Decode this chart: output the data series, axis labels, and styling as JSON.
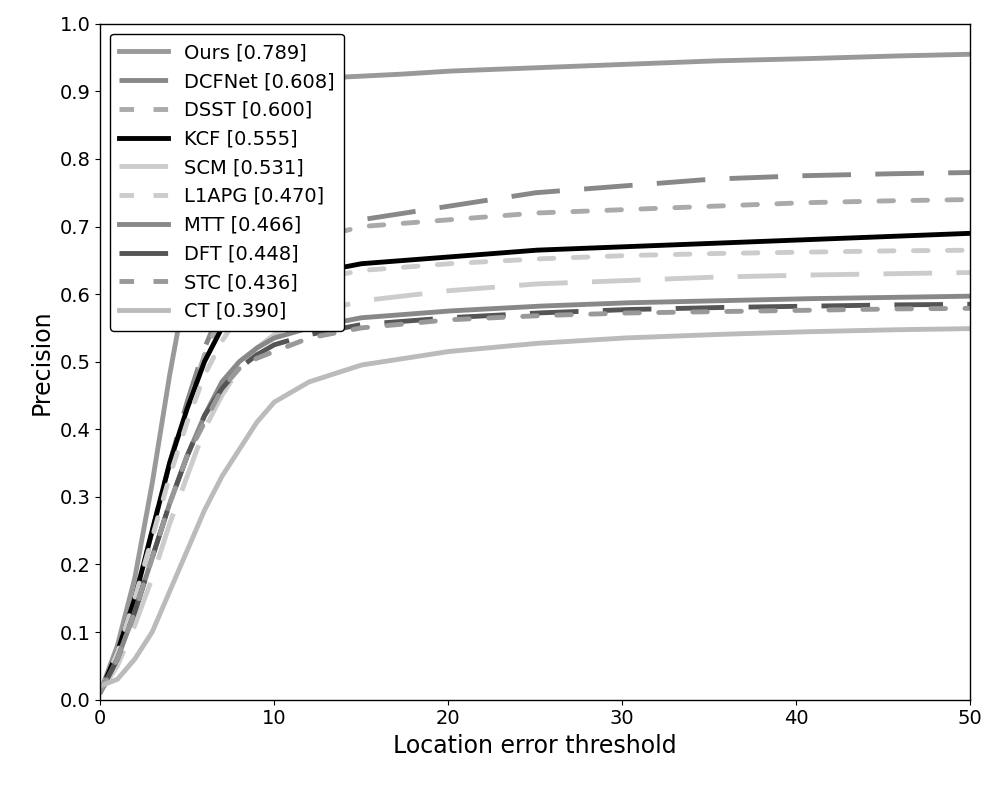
{
  "title": "",
  "xlabel": "Location error threshold",
  "ylabel": "Precision",
  "xlim": [
    0,
    50
  ],
  "ylim": [
    0,
    1
  ],
  "xticks": [
    0,
    10,
    20,
    30,
    40,
    50
  ],
  "yticks": [
    0,
    0.1,
    0.2,
    0.3,
    0.4,
    0.5,
    0.6,
    0.7,
    0.8,
    0.9,
    1
  ],
  "background_color": "#ffffff",
  "series": [
    {
      "name": "Ours [0.789]",
      "color": "#999999",
      "linestyle": "solid",
      "linewidth": 3.5,
      "points": [
        [
          0,
          0.01
        ],
        [
          1,
          0.08
        ],
        [
          2,
          0.18
        ],
        [
          3,
          0.32
        ],
        [
          4,
          0.48
        ],
        [
          5,
          0.62
        ],
        [
          6,
          0.72
        ],
        [
          7,
          0.79
        ],
        [
          8,
          0.84
        ],
        [
          9,
          0.87
        ],
        [
          10,
          0.9
        ],
        [
          13,
          0.92
        ],
        [
          17,
          0.925
        ],
        [
          20,
          0.93
        ],
        [
          25,
          0.935
        ],
        [
          30,
          0.94
        ],
        [
          35,
          0.945
        ],
        [
          40,
          0.948
        ],
        [
          45,
          0.952
        ],
        [
          50,
          0.955
        ]
      ]
    },
    {
      "name": "DCFNet [0.608]",
      "color": "#888888",
      "linestyle": "dashed",
      "linewidth": 3.5,
      "points": [
        [
          0,
          0.01
        ],
        [
          1,
          0.07
        ],
        [
          2,
          0.15
        ],
        [
          3,
          0.25
        ],
        [
          4,
          0.35
        ],
        [
          5,
          0.44
        ],
        [
          6,
          0.52
        ],
        [
          7,
          0.58
        ],
        [
          8,
          0.62
        ],
        [
          9,
          0.65
        ],
        [
          10,
          0.67
        ],
        [
          12,
          0.69
        ],
        [
          15,
          0.71
        ],
        [
          20,
          0.73
        ],
        [
          25,
          0.75
        ],
        [
          30,
          0.76
        ],
        [
          35,
          0.77
        ],
        [
          40,
          0.775
        ],
        [
          45,
          0.778
        ],
        [
          50,
          0.78
        ]
      ]
    },
    {
      "name": "DSST [0.600]",
      "color": "#aaaaaa",
      "linestyle": "dotted",
      "linewidth": 3.5,
      "points": [
        [
          0,
          0.01
        ],
        [
          1,
          0.07
        ],
        [
          2,
          0.15
        ],
        [
          3,
          0.24
        ],
        [
          4,
          0.34
        ],
        [
          5,
          0.43
        ],
        [
          6,
          0.51
        ],
        [
          7,
          0.57
        ],
        [
          8,
          0.61
        ],
        [
          9,
          0.64
        ],
        [
          10,
          0.66
        ],
        [
          12,
          0.68
        ],
        [
          15,
          0.7
        ],
        [
          20,
          0.71
        ],
        [
          25,
          0.72
        ],
        [
          30,
          0.725
        ],
        [
          35,
          0.73
        ],
        [
          40,
          0.735
        ],
        [
          45,
          0.738
        ],
        [
          50,
          0.74
        ]
      ]
    },
    {
      "name": "KCF [0.555]",
      "color": "#000000",
      "linestyle": "solid",
      "linewidth": 3.5,
      "points": [
        [
          0,
          0.01
        ],
        [
          1,
          0.07
        ],
        [
          2,
          0.15
        ],
        [
          3,
          0.25
        ],
        [
          4,
          0.35
        ],
        [
          5,
          0.43
        ],
        [
          6,
          0.5
        ],
        [
          7,
          0.55
        ],
        [
          8,
          0.58
        ],
        [
          9,
          0.6
        ],
        [
          10,
          0.61
        ],
        [
          12,
          0.63
        ],
        [
          15,
          0.645
        ],
        [
          20,
          0.655
        ],
        [
          25,
          0.665
        ],
        [
          30,
          0.67
        ],
        [
          35,
          0.675
        ],
        [
          40,
          0.68
        ],
        [
          45,
          0.685
        ],
        [
          50,
          0.69
        ]
      ]
    },
    {
      "name": "SCM [0.531]",
      "color": "#cccccc",
      "linestyle": "dashed",
      "linewidth": 3.5,
      "points": [
        [
          0,
          0.01
        ],
        [
          1,
          0.05
        ],
        [
          2,
          0.11
        ],
        [
          3,
          0.18
        ],
        [
          4,
          0.26
        ],
        [
          5,
          0.33
        ],
        [
          6,
          0.4
        ],
        [
          7,
          0.45
        ],
        [
          8,
          0.49
        ],
        [
          9,
          0.52
        ],
        [
          10,
          0.54
        ],
        [
          12,
          0.57
        ],
        [
          15,
          0.59
        ],
        [
          20,
          0.605
        ],
        [
          25,
          0.615
        ],
        [
          30,
          0.62
        ],
        [
          35,
          0.625
        ],
        [
          40,
          0.628
        ],
        [
          45,
          0.63
        ],
        [
          50,
          0.632
        ]
      ]
    },
    {
      "name": "L1APG [0.470]",
      "color": "#cccccc",
      "linestyle": "dotted",
      "linewidth": 3.5,
      "points": [
        [
          0,
          0.01
        ],
        [
          1,
          0.07
        ],
        [
          2,
          0.15
        ],
        [
          3,
          0.24
        ],
        [
          4,
          0.33
        ],
        [
          5,
          0.41
        ],
        [
          6,
          0.48
        ],
        [
          7,
          0.53
        ],
        [
          8,
          0.57
        ],
        [
          9,
          0.59
        ],
        [
          10,
          0.6
        ],
        [
          12,
          0.62
        ],
        [
          15,
          0.635
        ],
        [
          20,
          0.645
        ],
        [
          25,
          0.652
        ],
        [
          30,
          0.657
        ],
        [
          35,
          0.66
        ],
        [
          40,
          0.662
        ],
        [
          45,
          0.664
        ],
        [
          50,
          0.665
        ]
      ]
    },
    {
      "name": "MTT [0.466]",
      "color": "#888888",
      "linestyle": "solid",
      "linewidth": 3.5,
      "points": [
        [
          0,
          0.01
        ],
        [
          1,
          0.06
        ],
        [
          2,
          0.13
        ],
        [
          3,
          0.21
        ],
        [
          4,
          0.29
        ],
        [
          5,
          0.36
        ],
        [
          6,
          0.42
        ],
        [
          7,
          0.47
        ],
        [
          8,
          0.5
        ],
        [
          9,
          0.52
        ],
        [
          10,
          0.535
        ],
        [
          12,
          0.55
        ],
        [
          15,
          0.565
        ],
        [
          20,
          0.575
        ],
        [
          25,
          0.582
        ],
        [
          30,
          0.587
        ],
        [
          35,
          0.59
        ],
        [
          40,
          0.593
        ],
        [
          45,
          0.595
        ],
        [
          50,
          0.597
        ]
      ]
    },
    {
      "name": "DFT [0.448]",
      "color": "#555555",
      "linestyle": "dashed",
      "linewidth": 3.5,
      "points": [
        [
          0,
          0.01
        ],
        [
          1,
          0.06
        ],
        [
          2,
          0.13
        ],
        [
          3,
          0.21
        ],
        [
          4,
          0.29
        ],
        [
          5,
          0.36
        ],
        [
          6,
          0.42
        ],
        [
          7,
          0.46
        ],
        [
          8,
          0.49
        ],
        [
          9,
          0.51
        ],
        [
          10,
          0.525
        ],
        [
          12,
          0.54
        ],
        [
          15,
          0.555
        ],
        [
          20,
          0.565
        ],
        [
          25,
          0.572
        ],
        [
          30,
          0.577
        ],
        [
          35,
          0.58
        ],
        [
          40,
          0.582
        ],
        [
          45,
          0.584
        ],
        [
          50,
          0.585
        ]
      ]
    },
    {
      "name": "STC [0.436]",
      "color": "#999999",
      "linestyle": "dotted",
      "linewidth": 3.5,
      "points": [
        [
          0,
          0.01
        ],
        [
          1,
          0.06
        ],
        [
          2,
          0.13
        ],
        [
          3,
          0.21
        ],
        [
          4,
          0.29
        ],
        [
          5,
          0.36
        ],
        [
          6,
          0.41
        ],
        [
          7,
          0.46
        ],
        [
          8,
          0.49
        ],
        [
          9,
          0.505
        ],
        [
          10,
          0.515
        ],
        [
          12,
          0.535
        ],
        [
          15,
          0.55
        ],
        [
          20,
          0.562
        ],
        [
          25,
          0.568
        ],
        [
          30,
          0.572
        ],
        [
          35,
          0.574
        ],
        [
          40,
          0.576
        ],
        [
          45,
          0.578
        ],
        [
          50,
          0.579
        ]
      ]
    },
    {
      "name": "CT [0.390]",
      "color": "#bbbbbb",
      "linestyle": "solid",
      "linewidth": 3.5,
      "points": [
        [
          0,
          0.02
        ],
        [
          1,
          0.03
        ],
        [
          2,
          0.06
        ],
        [
          3,
          0.1
        ],
        [
          4,
          0.16
        ],
        [
          5,
          0.22
        ],
        [
          6,
          0.28
        ],
        [
          7,
          0.33
        ],
        [
          8,
          0.37
        ],
        [
          9,
          0.41
        ],
        [
          10,
          0.44
        ],
        [
          12,
          0.47
        ],
        [
          15,
          0.495
        ],
        [
          20,
          0.515
        ],
        [
          25,
          0.527
        ],
        [
          30,
          0.535
        ],
        [
          35,
          0.54
        ],
        [
          40,
          0.544
        ],
        [
          45,
          0.547
        ],
        [
          50,
          0.549
        ]
      ]
    }
  ],
  "legend_fontsize": 14,
  "axis_fontsize": 17,
  "tick_fontsize": 14
}
